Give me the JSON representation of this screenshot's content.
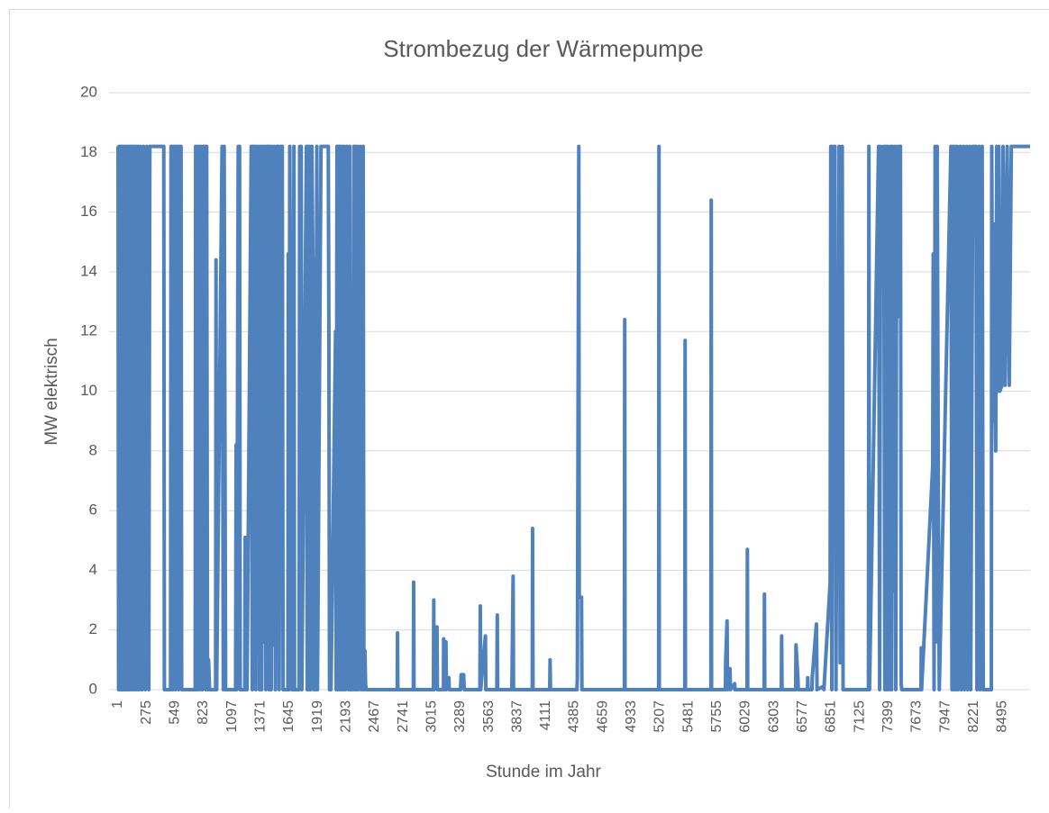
{
  "chart_data": {
    "type": "line",
    "title": "Strombezug der Wärmepumpe",
    "x_label": "Stunde im Jahr",
    "y_label": "MW elektrisch",
    "xlim": [
      1,
      8760
    ],
    "ylim": [
      0,
      20
    ],
    "yticks": [
      0,
      2,
      4,
      6,
      8,
      10,
      12,
      14,
      16,
      18,
      20
    ],
    "xticks": [
      1,
      275,
      549,
      823,
      1097,
      1371,
      1645,
      1919,
      2193,
      2467,
      2741,
      3015,
      3289,
      3563,
      3837,
      4111,
      4385,
      4659,
      4933,
      5207,
      5481,
      5755,
      6029,
      6303,
      6577,
      6851,
      7125,
      7399,
      7673,
      7947,
      8221,
      8495
    ],
    "grid": true,
    "color": "#4f81bd",
    "x": [
      1,
      6,
      10,
      16,
      21,
      27,
      31,
      37,
      42,
      48,
      53,
      60,
      66,
      73,
      80,
      87,
      94,
      101,
      108,
      116,
      124,
      132,
      140,
      149,
      158,
      167,
      176,
      186,
      196,
      206,
      216,
      232,
      244,
      262,
      276,
      296,
      306,
      440,
      446,
      505,
      510,
      520,
      526,
      534,
      540,
      546,
      552,
      558,
      566,
      572,
      582,
      590,
      606,
      612,
      742,
      746,
      756,
      764,
      774,
      782,
      792,
      800,
      812,
      822,
      836,
      844,
      852,
      860,
      870,
      880,
      938,
      942,
      948,
      1000,
      1012,
      1020,
      1034,
      1130,
      1135,
      1140,
      1155,
      1168,
      1174,
      1218,
      1222,
      1228,
      1236,
      1240,
      1280,
      1290,
      1298,
      1306,
      1314,
      1324,
      1332,
      1342,
      1350,
      1360,
      1370,
      1380,
      1390,
      1400,
      1410,
      1420,
      1430,
      1445,
      1452,
      1462,
      1472,
      1480,
      1490,
      1500,
      1512,
      1522,
      1540,
      1548,
      1560,
      1578,
      1586,
      1632,
      1636,
      1642,
      1650,
      1660,
      1668,
      1676,
      1684,
      1690,
      1696,
      1740,
      1745,
      1760,
      1766,
      1810,
      1818,
      1826,
      1834,
      1842,
      1852,
      1862,
      1872,
      1880,
      1890,
      1900,
      1910,
      1916,
      1950,
      2020,
      2026,
      2032,
      2040,
      2046,
      2090,
      2096,
      2104,
      2112,
      2120,
      2128,
      2136,
      2146,
      2156,
      2166,
      2176,
      2186,
      2196,
      2206,
      2216,
      2226,
      2236,
      2246,
      2256,
      2266,
      2276,
      2286,
      2296,
      2306,
      2316,
      2330,
      2340,
      2355,
      2362,
      2372,
      2378,
      2384,
      2682,
      2685,
      2688,
      2837,
      2840,
      2843,
      3030,
      3033,
      3036,
      3064,
      3068,
      3126,
      3128,
      3132,
      3150,
      3154,
      3178,
      3182,
      3290,
      3296,
      3320,
      3326,
      3476,
      3480,
      3484,
      3529,
      3533,
      3639,
      3643,
      3647,
      3782,
      3785,
      3795,
      3799,
      3979,
      3982,
      3986,
      4147,
      4150,
      4154,
      4408,
      4412,
      4426,
      4430,
      4452,
      4456,
      4864,
      4867,
      4870,
      5193,
      5196,
      5199,
      5444,
      5447,
      5450,
      5695,
      5698,
      5701,
      5834,
      5837,
      5850,
      5854,
      5878,
      5882,
      5922,
      5926,
      6042,
      6045,
      6048,
      6206,
      6209,
      6212,
      6371,
      6374,
      6378,
      6509,
      6512,
      6530,
      6534,
      6622,
      6625,
      6628,
      6665,
      6668,
      6708,
      6714,
      6770,
      6780,
      6840,
      6846,
      6856,
      6866,
      6876,
      6886,
      6896,
      6906,
      6916,
      6926,
      6936,
      6946,
      6956,
      6964,
      7208,
      7212,
      7218,
      7305,
      7315,
      7325,
      7335,
      7345,
      7355,
      7365,
      7375,
      7385,
      7395,
      7405,
      7420,
      7430,
      7440,
      7450,
      7460,
      7470,
      7480,
      7490,
      7500,
      7515,
      7522,
      7528,
      7712,
      7715,
      7718,
      7825,
      7830,
      7838,
      7848,
      7858,
      7868,
      7878,
      7888,
      8000,
      8010,
      8020,
      8030,
      8040,
      8050,
      8060,
      8070,
      8090,
      8100,
      8120,
      8130,
      8150,
      8160,
      8180,
      8190,
      8210,
      8240,
      8250,
      8270,
      8280,
      8300,
      8310,
      8388,
      8392,
      8400,
      8410,
      8420,
      8430,
      8440,
      8450,
      8460,
      8470,
      8490,
      8500,
      8520,
      8540,
      8560,
      8580,
      8760
    ],
    "values": [
      18.2,
      0,
      18.2,
      0,
      18.2,
      0,
      18.2,
      0,
      18.2,
      0,
      18.2,
      0,
      18.2,
      0,
      18.2,
      0,
      18.2,
      0,
      18.2,
      0,
      18.2,
      0,
      18.2,
      0,
      18.2,
      0,
      18.2,
      0,
      18.2,
      0,
      18.2,
      0,
      18.2,
      0,
      18.2,
      0,
      18.2,
      18.2,
      0,
      0,
      18.2,
      18.2,
      0,
      18.2,
      6.5,
      18.2,
      0,
      18.2,
      5.8,
      18.2,
      0,
      18.2,
      18.2,
      0,
      0,
      18.2,
      0,
      18.2,
      0,
      18.2,
      0,
      18.2,
      0,
      18.2,
      18.2,
      0,
      18.2,
      0,
      1,
      0,
      0,
      14.4,
      0,
      18.2,
      0,
      18.2,
      0,
      0,
      8.2,
      0,
      18.2,
      18.2,
      0,
      0,
      5.1,
      0,
      4,
      0,
      18.2,
      0,
      18.2,
      3.3,
      18.2,
      0,
      18.2,
      8.3,
      18.2,
      0,
      18.2,
      0,
      18.2,
      1.6,
      18.2,
      0,
      18.2,
      18.2,
      0,
      18.2,
      0,
      18.2,
      1.5,
      18.2,
      0,
      18.2,
      18.2,
      0,
      18.2,
      18.2,
      0,
      0,
      14.6,
      0,
      18.2,
      11.5,
      0,
      11.3,
      0,
      18.2,
      0,
      0,
      18.2,
      18.2,
      0,
      18.2,
      0,
      18.2,
      0,
      18.2,
      0,
      18.2,
      14.5,
      0,
      14.4,
      0,
      18.2,
      0,
      18.2,
      18.2,
      11.7,
      0,
      4.2,
      0,
      12,
      0,
      18.2,
      0,
      18.2,
      0,
      18.2,
      0,
      18.2,
      0,
      18.2,
      0,
      18.2,
      13.3,
      0,
      18.2,
      0,
      13.2,
      0,
      18.2,
      0,
      18.2,
      0,
      18.2,
      0,
      18.2,
      0,
      18.2,
      0,
      1.3,
      0.2,
      0,
      0,
      1.9,
      0,
      0,
      3.6,
      0,
      0,
      3,
      0,
      2.1,
      0,
      0,
      1.7,
      0,
      1.6,
      0,
      0.4,
      0,
      0,
      0.5,
      0.5,
      0,
      0,
      2.8,
      0,
      1.8,
      0,
      0,
      2.5,
      0,
      0,
      0.5,
      3.8,
      0,
      0,
      5.4,
      0,
      0,
      1,
      0,
      0,
      0.4,
      18.2,
      3.1,
      3.1,
      0,
      0,
      12.4,
      0,
      0,
      18.2,
      0,
      0,
      11.7,
      0,
      0,
      16.4,
      0,
      0,
      1,
      2.3,
      0,
      0.7,
      0,
      0.2,
      0,
      0,
      4.7,
      0,
      0,
      3.2,
      0,
      0,
      1.8,
      0,
      0,
      1.5,
      0.4,
      0,
      0,
      0.4,
      0,
      0,
      0.4,
      2.2,
      0,
      0.1,
      0,
      3.6,
      18.2,
      0,
      18.2,
      7.7,
      18.2,
      0,
      10.6,
      3.9,
      18.2,
      0.9,
      12,
      18.2,
      0,
      0,
      18.2,
      0,
      18.2,
      0,
      18.2,
      13.7,
      13.5,
      18.2,
      0,
      18.2,
      0,
      18.2,
      0,
      18.2,
      0,
      18.2,
      3.3,
      18.2,
      0,
      18.2,
      12.5,
      18.2,
      18.2,
      0.2,
      0,
      0,
      1.4,
      0,
      7.5,
      14.6,
      0,
      18.2,
      1.6,
      18.2,
      7.5,
      0,
      18.2,
      0,
      18.2,
      0,
      18.2,
      0,
      18.2,
      0,
      18.2,
      0,
      18.2,
      0,
      18.2,
      0,
      18.2,
      0,
      18.2,
      18.2,
      0,
      18.2,
      0,
      18.2,
      0,
      0,
      18.2,
      9,
      15.6,
      10.6,
      8,
      18.2,
      10,
      18.2,
      10,
      10.2,
      18.2,
      10.2,
      18.2,
      10.2,
      18.2,
      18.2
    ]
  }
}
